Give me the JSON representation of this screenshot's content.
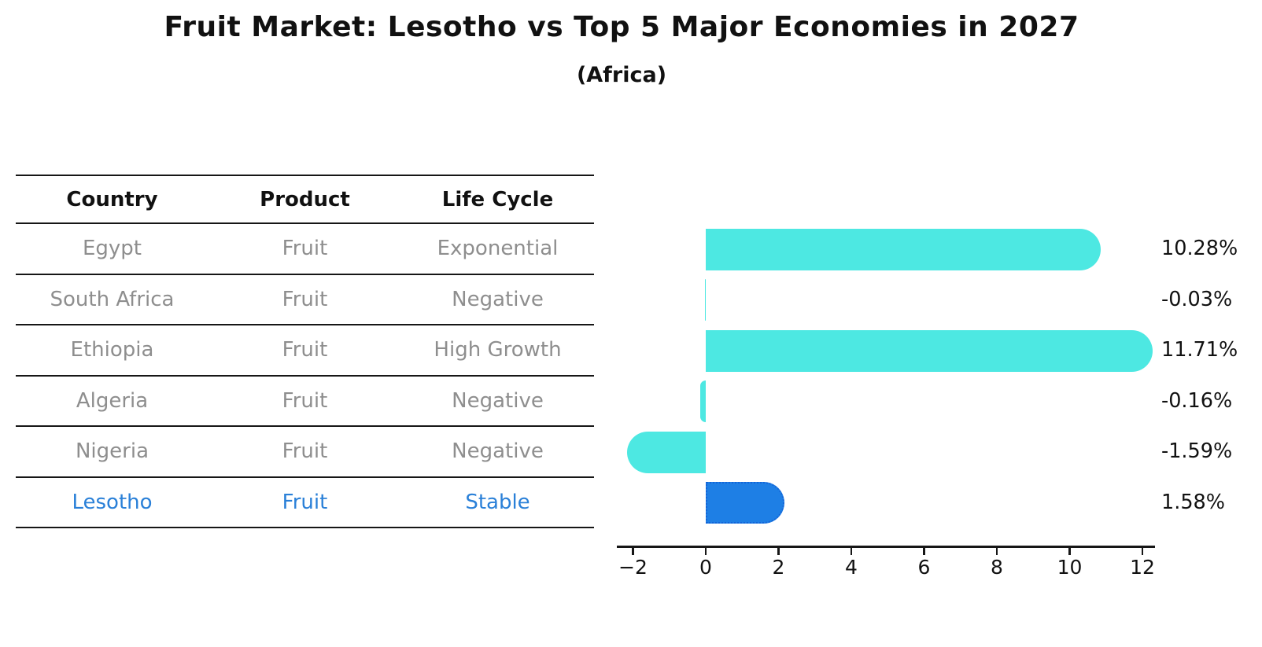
{
  "title": "Fruit Market: Lesotho vs Top 5 Major Economies in 2027",
  "subtitle": "(Africa)",
  "table": {
    "headers": [
      "Country",
      "Product",
      "Life Cycle"
    ],
    "rows": [
      {
        "country": "Egypt",
        "product": "Fruit",
        "life_cycle": "Exponential",
        "highlight": false
      },
      {
        "country": "South Africa",
        "product": "Fruit",
        "life_cycle": "Negative",
        "highlight": false
      },
      {
        "country": "Ethiopia",
        "product": "Fruit",
        "life_cycle": "High Growth",
        "highlight": false
      },
      {
        "country": "Algeria",
        "product": "Fruit",
        "life_cycle": "Negative",
        "highlight": false
      },
      {
        "country": "Nigeria",
        "product": "Fruit",
        "life_cycle": "Negative",
        "highlight": false
      },
      {
        "country": "Lesotho",
        "product": "Fruit",
        "life_cycle": "Stable",
        "highlight": true
      }
    ]
  },
  "chart_data": {
    "type": "bar",
    "orientation": "horizontal",
    "title": "Fruit Market: Lesotho vs Top 5 Major Economies in 2027",
    "subtitle": "(Africa)",
    "categories": [
      "Egypt",
      "South Africa",
      "Ethiopia",
      "Algeria",
      "Nigeria",
      "Lesotho"
    ],
    "values": [
      10.28,
      -0.03,
      11.71,
      -0.16,
      -1.59,
      1.58
    ],
    "value_labels": [
      "10.28%",
      "-0.03%",
      "11.71%",
      "-0.16%",
      "-1.59%",
      "1.58%"
    ],
    "highlight_index": 5,
    "xlim": [
      -2.45,
      12.35
    ],
    "x_ticks": [
      -2,
      0,
      2,
      4,
      6,
      8,
      10,
      12
    ],
    "x_tick_labels": [
      "−2",
      "0",
      "2",
      "4",
      "6",
      "8",
      "10",
      "12"
    ],
    "grid": false,
    "legend": false,
    "bar_color": "#4DE8E2",
    "highlight_bar_color": "#1E7FE5",
    "highlight_border_color": "#1464D8",
    "highlight_text_color": "#2A80D8",
    "text_color": "#111111",
    "muted_text_color": "#8E8E8E"
  }
}
